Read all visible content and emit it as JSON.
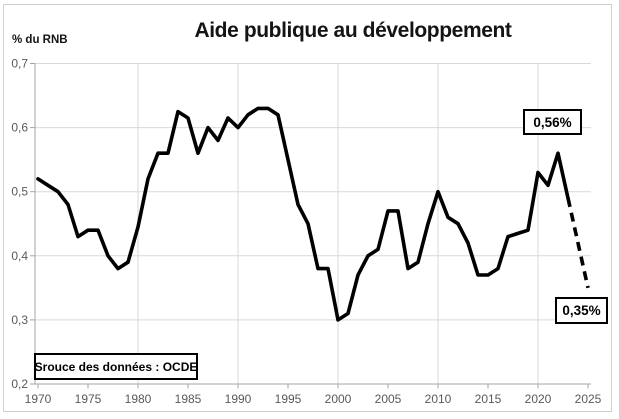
{
  "title": "Aide publique au développement",
  "y_axis_title": "% du RNB",
  "source_note": "Srouce des données : OCDE",
  "chart_data": {
    "type": "line",
    "title": "Aide publique au développement",
    "ylabel": "% du RNB",
    "xlabel": "",
    "ylim": [
      0.2,
      0.7
    ],
    "xlim": [
      1970,
      2025
    ],
    "grid": {
      "h_lines": [
        0.3,
        0.4,
        0.5,
        0.6,
        0.7
      ],
      "v_lines": [
        1980,
        1990,
        2000,
        2010,
        2020
      ]
    },
    "y_ticks": [
      {
        "value": 0.7,
        "label": "0,7"
      },
      {
        "value": 0.6,
        "label": "0,6"
      },
      {
        "value": 0.5,
        "label": "0,5"
      },
      {
        "value": 0.4,
        "label": "0,4"
      },
      {
        "value": 0.3,
        "label": "0,3"
      },
      {
        "value": 0.2,
        "label": "0,2"
      }
    ],
    "x_ticks": [
      {
        "value": 1970,
        "label": "1970"
      },
      {
        "value": 1975,
        "label": "1975"
      },
      {
        "value": 1980,
        "label": "1980"
      },
      {
        "value": 1985,
        "label": "1985"
      },
      {
        "value": 1990,
        "label": "1990"
      },
      {
        "value": 1995,
        "label": "1995"
      },
      {
        "value": 2000,
        "label": "2000"
      },
      {
        "value": 2005,
        "label": "2005"
      },
      {
        "value": 2010,
        "label": "2010"
      },
      {
        "value": 2015,
        "label": "2015"
      },
      {
        "value": 2020,
        "label": "2020"
      },
      {
        "value": 2025,
        "label": "2025"
      }
    ],
    "line_color": "#000000",
    "series": [
      {
        "name": "aide-publique-observee",
        "style": "solid",
        "points": [
          [
            1970,
            0.52
          ],
          [
            1971,
            0.51
          ],
          [
            1972,
            0.5
          ],
          [
            1973,
            0.48
          ],
          [
            1974,
            0.43
          ],
          [
            1975,
            0.44
          ],
          [
            1976,
            0.44
          ],
          [
            1977,
            0.4
          ],
          [
            1978,
            0.38
          ],
          [
            1979,
            0.39
          ],
          [
            1980,
            0.445
          ],
          [
            1981,
            0.52
          ],
          [
            1982,
            0.56
          ],
          [
            1983,
            0.56
          ],
          [
            1984,
            0.625
          ],
          [
            1985,
            0.615
          ],
          [
            1986,
            0.56
          ],
          [
            1987,
            0.6
          ],
          [
            1988,
            0.58
          ],
          [
            1989,
            0.615
          ],
          [
            1990,
            0.6
          ],
          [
            1991,
            0.62
          ],
          [
            1992,
            0.63
          ],
          [
            1993,
            0.63
          ],
          [
            1994,
            0.62
          ],
          [
            1995,
            0.55
          ],
          [
            1996,
            0.48
          ],
          [
            1997,
            0.45
          ],
          [
            1998,
            0.38
          ],
          [
            1999,
            0.38
          ],
          [
            2000,
            0.3
          ],
          [
            2001,
            0.31
          ],
          [
            2002,
            0.37
          ],
          [
            2003,
            0.4
          ],
          [
            2004,
            0.41
          ],
          [
            2005,
            0.47
          ],
          [
            2006,
            0.47
          ],
          [
            2007,
            0.38
          ],
          [
            2008,
            0.39
          ],
          [
            2009,
            0.45
          ],
          [
            2010,
            0.5
          ],
          [
            2011,
            0.46
          ],
          [
            2012,
            0.45
          ],
          [
            2013,
            0.42
          ],
          [
            2014,
            0.37
          ],
          [
            2015,
            0.37
          ],
          [
            2016,
            0.38
          ],
          [
            2017,
            0.43
          ],
          [
            2018,
            0.435
          ],
          [
            2019,
            0.44
          ],
          [
            2020,
            0.53
          ],
          [
            2021,
            0.51
          ],
          [
            2022,
            0.56
          ],
          [
            2023,
            0.49
          ]
        ]
      },
      {
        "name": "projection-pointillee",
        "style": "dashed",
        "points": [
          [
            2023,
            0.49
          ],
          [
            2024,
            0.42
          ],
          [
            2025,
            0.35
          ]
        ]
      }
    ],
    "annotations": [
      {
        "label": "0,56%",
        "x": 2022,
        "y": 0.56
      },
      {
        "label": "0,35%",
        "x": 2025,
        "y": 0.35
      }
    ]
  }
}
